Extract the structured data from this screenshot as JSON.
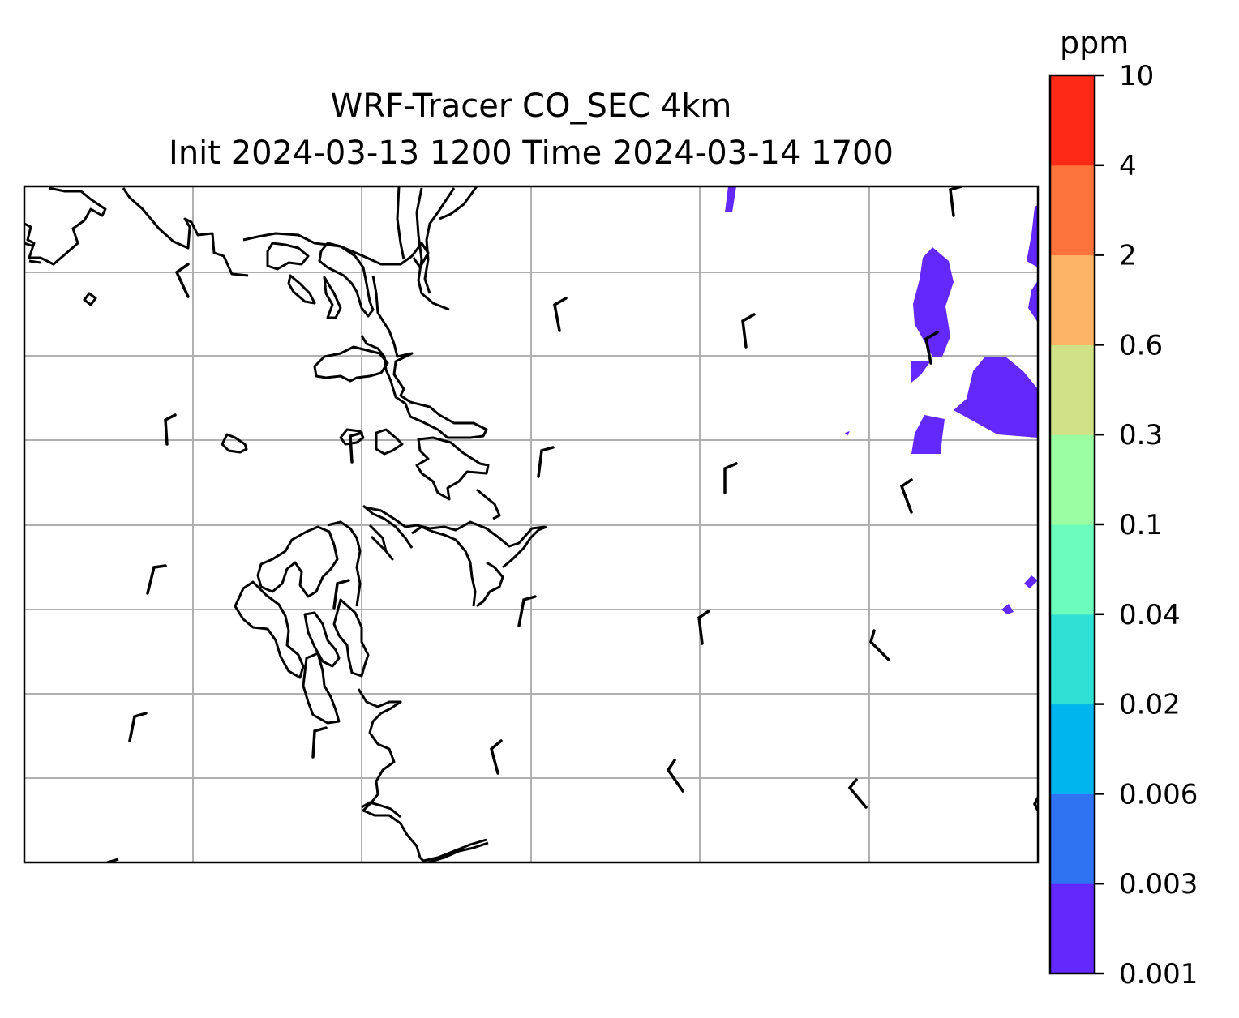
{
  "title_line1": "WRF-Tracer CO_SEC 4km",
  "title_line2": "Init 2024-03-13 1200 Time 2024-03-14 1700",
  "colorbar": {
    "unit": "ppm",
    "levels": [
      "0.001",
      "0.003",
      "0.006",
      "0.02",
      "0.04",
      "0.1",
      "0.3",
      "0.6",
      "2",
      "4",
      "10"
    ],
    "colors": [
      "#6328fb",
      "#3073f2",
      "#00b5ed",
      "#30e0d5",
      "#6cfdbd",
      "#9bfda1",
      "#d1e286",
      "#fdb466",
      "#fd733c",
      "#fd2a17"
    ]
  },
  "map": {
    "coastline_color": "#000000",
    "gridline_color": "#b0b0b0",
    "tracer_fill_color": "#6328fb",
    "wind_barb_color": "#000000"
  }
}
